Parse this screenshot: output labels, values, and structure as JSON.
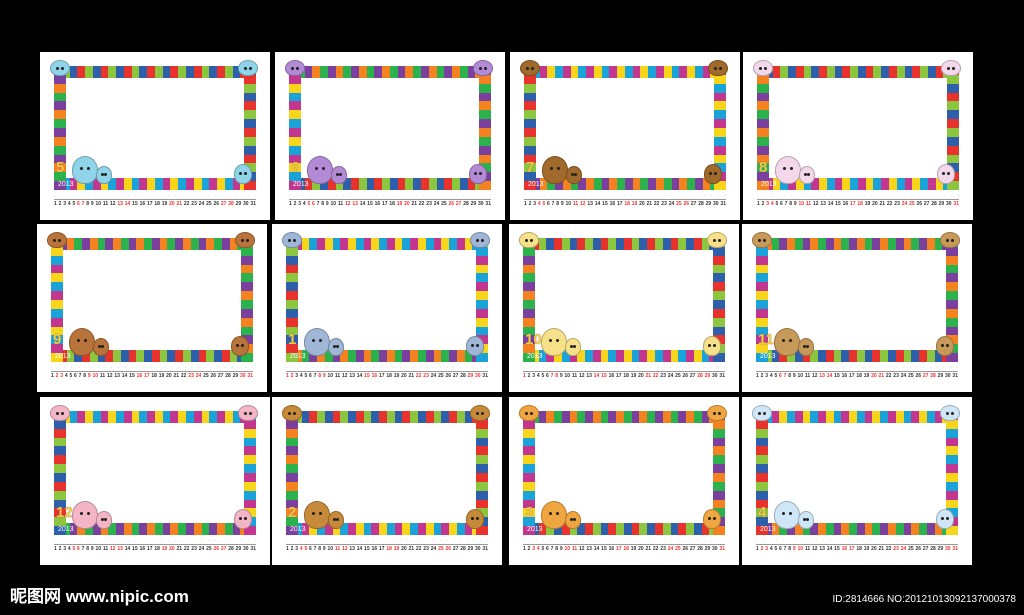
{
  "year": "2013",
  "cards": [
    {
      "month": "5",
      "animal": "dragon",
      "color": "#8fd4e8"
    },
    {
      "month": "6",
      "animal": "snake",
      "color": "#b38ad6"
    },
    {
      "month": "7",
      "animal": "horse",
      "color": "#a06a2c"
    },
    {
      "month": "8",
      "animal": "sheep",
      "color": "#f2d8ea"
    },
    {
      "month": "9",
      "animal": "monkey",
      "color": "#b8743a"
    },
    {
      "month": "1",
      "animal": "rat",
      "color": "#9fb6d6"
    },
    {
      "month": "10",
      "animal": "rooster",
      "color": "#f6e08a"
    },
    {
      "month": "11",
      "animal": "dog",
      "color": "#c89a5a"
    },
    {
      "month": "12",
      "animal": "pig",
      "color": "#f4b6c6"
    },
    {
      "month": "2",
      "animal": "ox",
      "color": "#c68a3a"
    },
    {
      "month": "3",
      "animal": "tiger",
      "color": "#f0a640"
    },
    {
      "month": "4",
      "animal": "rabbit",
      "color": "#cfe6f6"
    }
  ],
  "watermark_left": "昵图网 www.nipic.com",
  "watermark_right": "ID:2814666 NO:20121013092137000378",
  "stripe_colors": [
    "#e8322e",
    "#f58220",
    "#f6d51b",
    "#8cc63f",
    "#2bb24c",
    "#1aa3d9",
    "#2e5fab",
    "#7b3f9e",
    "#c2368f"
  ]
}
